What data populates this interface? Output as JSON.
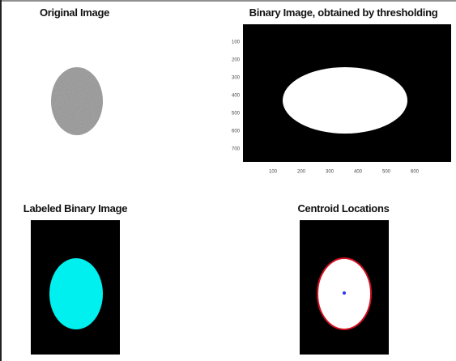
{
  "panels": [
    {
      "title": "Original Image"
    },
    {
      "title": "Binary Image, obtained by thresholding",
      "xticks": [
        100,
        200,
        300,
        400,
        500,
        600
      ],
      "yticks": [
        100,
        200,
        300,
        400,
        500,
        600,
        700
      ]
    },
    {
      "title": "Labeled Binary Image"
    },
    {
      "title": "Centroid Locations"
    }
  ]
}
